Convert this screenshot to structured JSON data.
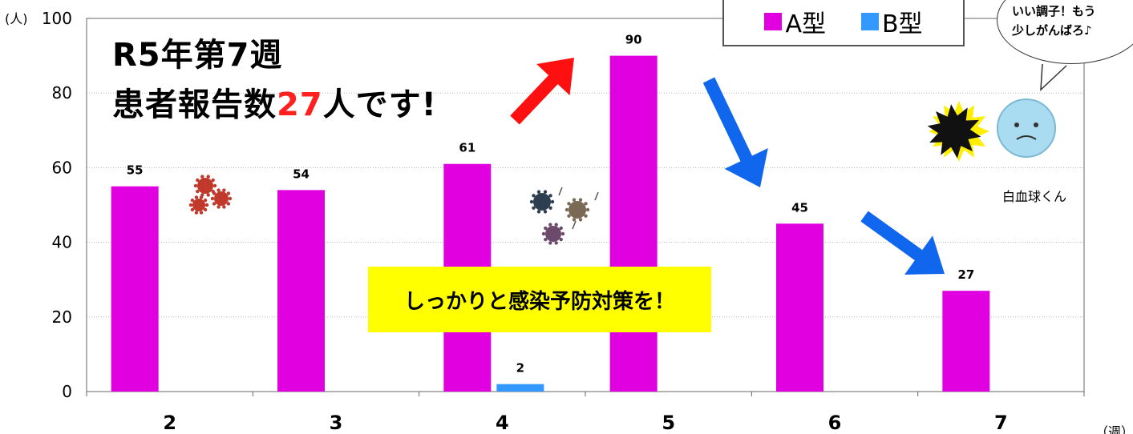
{
  "title": {
    "line1": "R5年第7週",
    "line2_prefix": "患者報告数",
    "line2_number": "27",
    "line2_suffix": "人です!"
  },
  "legend": [
    {
      "label": "A型",
      "color": "#e000e0"
    },
    {
      "label": "B型",
      "color": "#3399ff"
    }
  ],
  "speech_bubble": {
    "line1": "いい調子！もう",
    "line2": "少しがんばろ♪"
  },
  "callout": "しっかりと感染予防対策を！",
  "character_label": "白血球くん",
  "y_unit": "(人)",
  "x_unit": "（週）",
  "chart_data": {
    "type": "bar",
    "categories": [
      "2",
      "3",
      "4",
      "5",
      "6",
      "7"
    ],
    "series": [
      {
        "name": "A型",
        "values": [
          55,
          54,
          61,
          90,
          45,
          27
        ],
        "color": "#e000e0"
      },
      {
        "name": "B型",
        "values": [
          0,
          0,
          2,
          0,
          0,
          0
        ],
        "color": "#3399ff"
      }
    ],
    "value_labels": [
      {
        "series": 0,
        "index": 0,
        "text": "55"
      },
      {
        "series": 0,
        "index": 1,
        "text": "54"
      },
      {
        "series": 0,
        "index": 2,
        "text": "61"
      },
      {
        "series": 1,
        "index": 2,
        "text": "2"
      },
      {
        "series": 0,
        "index": 3,
        "text": "90"
      },
      {
        "series": 0,
        "index": 4,
        "text": "45"
      },
      {
        "series": 0,
        "index": 5,
        "text": "27"
      }
    ],
    "yticks": [
      0,
      20,
      40,
      60,
      80,
      100
    ],
    "ylim": [
      0,
      100
    ],
    "grid": true,
    "legend_position": "top-right"
  }
}
